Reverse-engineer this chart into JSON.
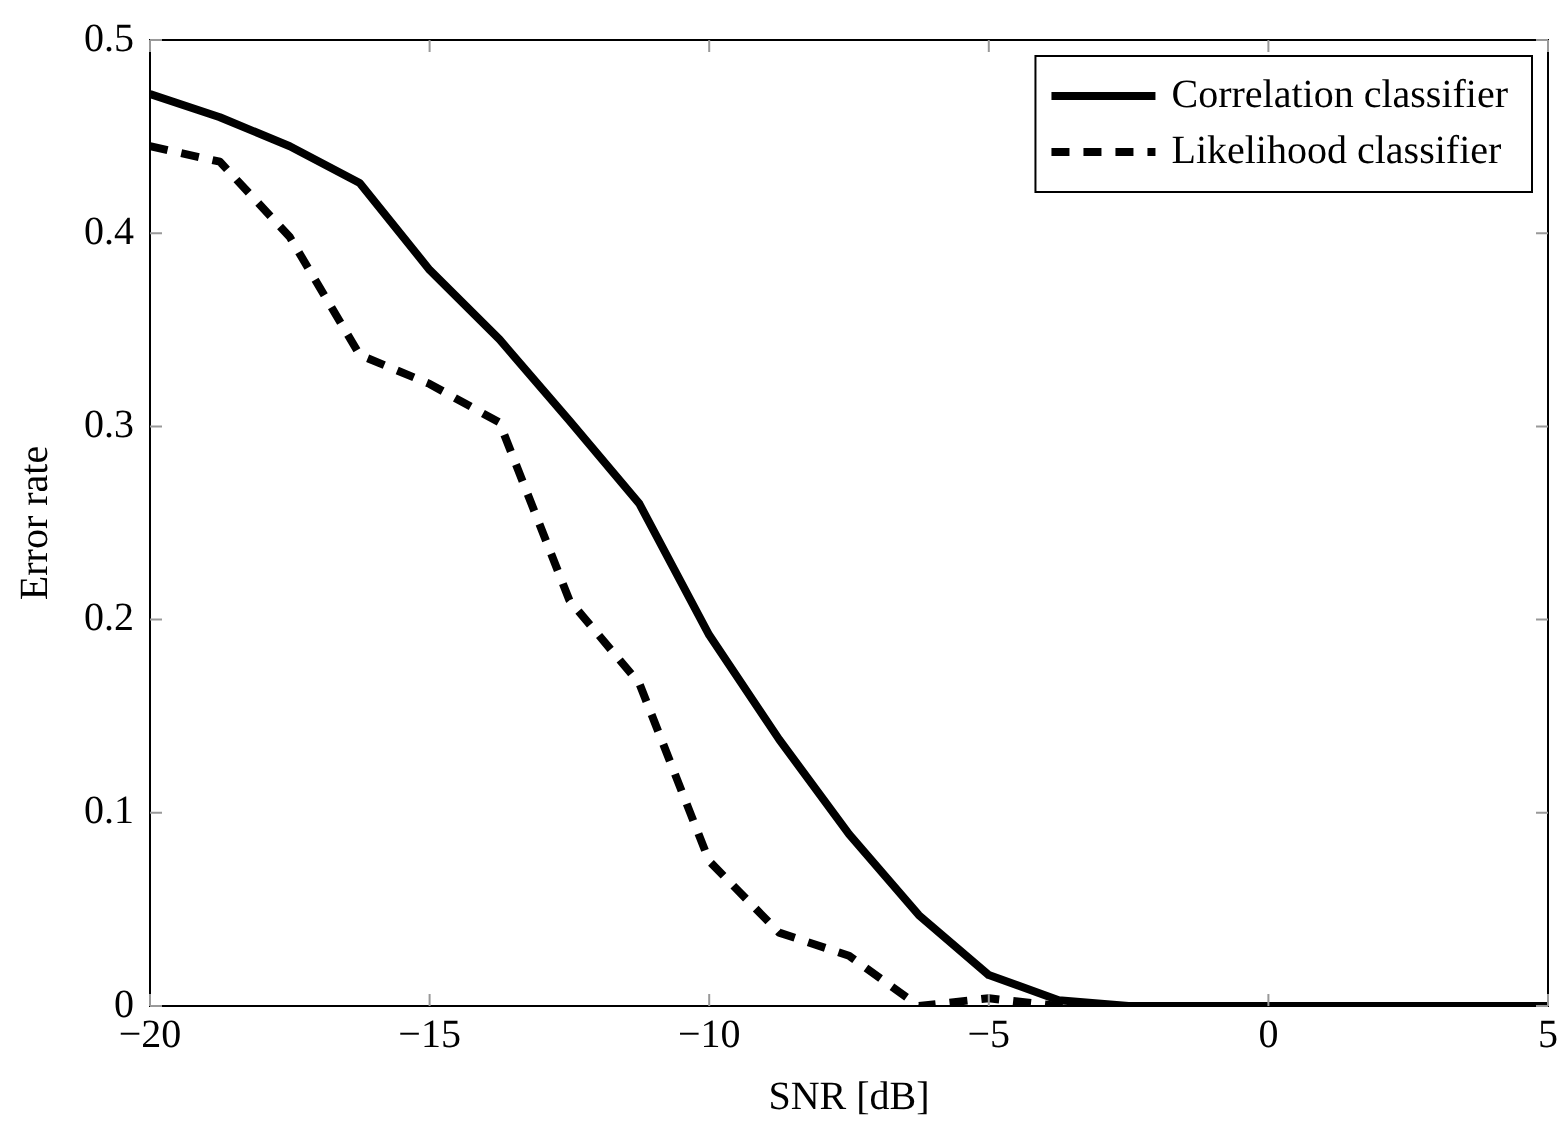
{
  "chart_data": {
    "type": "line",
    "xlabel": "SNR [dB]",
    "ylabel": "Error rate",
    "x": [
      -20,
      -18.75,
      -17.5,
      -16.25,
      -15,
      -13.75,
      -12.5,
      -11.25,
      -10,
      -8.75,
      -7.5,
      -6.25,
      -5,
      -3.75,
      -2.5,
      -1.25,
      0,
      1.25,
      2.5,
      3.75,
      5
    ],
    "series": [
      {
        "name": "Correlation classifier",
        "color": "#000000",
        "line_style": "solid",
        "values": [
          0.472,
          0.46,
          0.445,
          0.426,
          0.381,
          0.345,
          0.303,
          0.26,
          0.192,
          0.138,
          0.089,
          0.047,
          0.016,
          0.003,
          0,
          0,
          0,
          0,
          0,
          0,
          0
        ]
      },
      {
        "name": "Likelihood classifier",
        "color": "#000000",
        "line_style": "dashed",
        "values": [
          0.445,
          0.437,
          0.398,
          0.337,
          0.322,
          0.302,
          0.21,
          0.167,
          0.075,
          0.038,
          0.026,
          0,
          0.004,
          0,
          0,
          0,
          0,
          0,
          0,
          0,
          0
        ]
      }
    ],
    "xlim": [
      -20,
      5
    ],
    "xticks": [
      {
        "value": -20,
        "label": "−20"
      },
      {
        "value": -15,
        "label": "−15"
      },
      {
        "value": -10,
        "label": "−10"
      },
      {
        "value": -5,
        "label": "−5"
      },
      0,
      5
    ],
    "ylim": [
      0,
      0.5
    ],
    "yticks": [
      0,
      0.1,
      0.2,
      0.3,
      0.4,
      0.5
    ],
    "grid": false,
    "legend": "top right",
    "marker": "none"
  }
}
